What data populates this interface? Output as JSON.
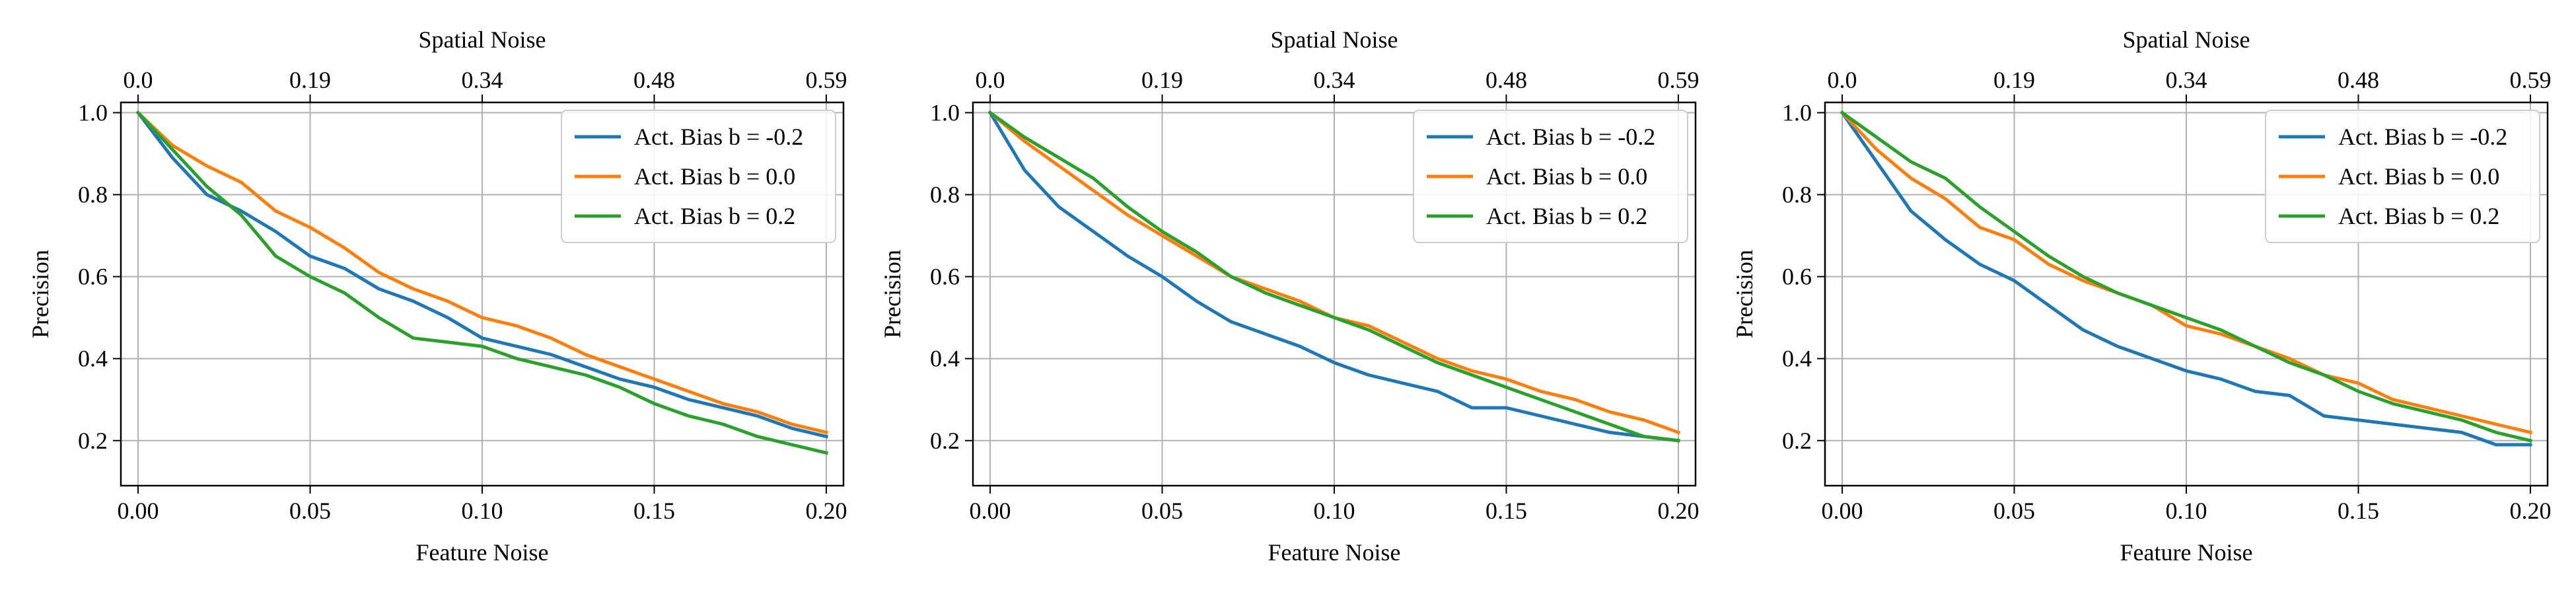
{
  "figure": {
    "colors": {
      "series": [
        "#1f77b4",
        "#ff7f0e",
        "#2ca02c"
      ],
      "grid": "#b0b0b0",
      "axis": "#000000",
      "legend_border": "#cccccc"
    }
  },
  "chart_data": [
    {
      "type": "line",
      "xlabel": "Feature Noise",
      "ylabel": "Precision",
      "top_xlabel": "Spatial Noise",
      "xlim": [
        -0.005,
        0.205
      ],
      "ylim": [
        0.09,
        1.025
      ],
      "xticks": [
        0.0,
        0.05,
        0.1,
        0.15,
        0.2
      ],
      "xtick_labels": [
        "0.00",
        "0.05",
        "0.10",
        "0.15",
        "0.20"
      ],
      "yticks": [
        0.2,
        0.4,
        0.6,
        0.8,
        1.0
      ],
      "ytick_labels": [
        "0.2",
        "0.4",
        "0.6",
        "0.8",
        "1.0"
      ],
      "top_xtick_labels": [
        "0.0",
        "0.19",
        "0.34",
        "0.48",
        "0.59"
      ],
      "grid": true,
      "legend_position": "upper right",
      "x": [
        0.0,
        0.01,
        0.02,
        0.03,
        0.04,
        0.05,
        0.06,
        0.07,
        0.08,
        0.09,
        0.1,
        0.11,
        0.12,
        0.13,
        0.14,
        0.15,
        0.16,
        0.17,
        0.18,
        0.19,
        0.2
      ],
      "series": [
        {
          "name": "Act. Bias b = -0.2",
          "values": [
            1.0,
            0.89,
            0.8,
            0.76,
            0.71,
            0.65,
            0.62,
            0.57,
            0.54,
            0.5,
            0.45,
            0.43,
            0.41,
            0.38,
            0.35,
            0.33,
            0.3,
            0.28,
            0.26,
            0.23,
            0.21
          ]
        },
        {
          "name": "Act. Bias b = 0.0",
          "values": [
            1.0,
            0.92,
            0.87,
            0.83,
            0.76,
            0.72,
            0.67,
            0.61,
            0.57,
            0.54,
            0.5,
            0.48,
            0.45,
            0.41,
            0.38,
            0.35,
            0.32,
            0.29,
            0.27,
            0.24,
            0.22
          ]
        },
        {
          "name": "Act. Bias b = 0.2",
          "values": [
            1.0,
            0.91,
            0.82,
            0.75,
            0.65,
            0.6,
            0.56,
            0.5,
            0.45,
            0.44,
            0.43,
            0.4,
            0.38,
            0.36,
            0.33,
            0.29,
            0.26,
            0.24,
            0.21,
            0.19,
            0.17
          ]
        }
      ]
    },
    {
      "type": "line",
      "xlabel": "Feature Noise",
      "ylabel": "Precision",
      "top_xlabel": "Spatial Noise",
      "xlim": [
        -0.005,
        0.205
      ],
      "ylim": [
        0.09,
        1.025
      ],
      "xticks": [
        0.0,
        0.05,
        0.1,
        0.15,
        0.2
      ],
      "xtick_labels": [
        "0.00",
        "0.05",
        "0.10",
        "0.15",
        "0.20"
      ],
      "yticks": [
        0.2,
        0.4,
        0.6,
        0.8,
        1.0
      ],
      "ytick_labels": [
        "0.2",
        "0.4",
        "0.6",
        "0.8",
        "1.0"
      ],
      "top_xtick_labels": [
        "0.0",
        "0.19",
        "0.34",
        "0.48",
        "0.59"
      ],
      "grid": true,
      "legend_position": "upper right",
      "x": [
        0.0,
        0.01,
        0.02,
        0.03,
        0.04,
        0.05,
        0.06,
        0.07,
        0.08,
        0.09,
        0.1,
        0.11,
        0.12,
        0.13,
        0.14,
        0.15,
        0.16,
        0.17,
        0.18,
        0.19,
        0.2
      ],
      "series": [
        {
          "name": "Act. Bias b = -0.2",
          "values": [
            1.0,
            0.86,
            0.77,
            0.71,
            0.65,
            0.6,
            0.54,
            0.49,
            0.46,
            0.43,
            0.39,
            0.36,
            0.34,
            0.32,
            0.28,
            0.28,
            0.26,
            0.24,
            0.22,
            0.21,
            0.2
          ]
        },
        {
          "name": "Act. Bias b = 0.0",
          "values": [
            1.0,
            0.93,
            0.87,
            0.81,
            0.75,
            0.7,
            0.65,
            0.6,
            0.57,
            0.54,
            0.5,
            0.48,
            0.44,
            0.4,
            0.37,
            0.35,
            0.32,
            0.3,
            0.27,
            0.25,
            0.22
          ]
        },
        {
          "name": "Act. Bias b = 0.2",
          "values": [
            1.0,
            0.94,
            0.89,
            0.84,
            0.77,
            0.71,
            0.66,
            0.6,
            0.56,
            0.53,
            0.5,
            0.47,
            0.43,
            0.39,
            0.36,
            0.33,
            0.3,
            0.27,
            0.24,
            0.21,
            0.2
          ]
        }
      ]
    },
    {
      "type": "line",
      "xlabel": "Feature Noise",
      "ylabel": "Precision",
      "top_xlabel": "Spatial Noise",
      "xlim": [
        -0.005,
        0.205
      ],
      "ylim": [
        0.09,
        1.025
      ],
      "xticks": [
        0.0,
        0.05,
        0.1,
        0.15,
        0.2
      ],
      "xtick_labels": [
        "0.00",
        "0.05",
        "0.10",
        "0.15",
        "0.20"
      ],
      "yticks": [
        0.2,
        0.4,
        0.6,
        0.8,
        1.0
      ],
      "ytick_labels": [
        "0.2",
        "0.4",
        "0.6",
        "0.8",
        "1.0"
      ],
      "top_xtick_labels": [
        "0.0",
        "0.19",
        "0.34",
        "0.48",
        "0.59"
      ],
      "grid": true,
      "legend_position": "upper right",
      "x": [
        0.0,
        0.01,
        0.02,
        0.03,
        0.04,
        0.05,
        0.06,
        0.07,
        0.08,
        0.09,
        0.1,
        0.11,
        0.12,
        0.13,
        0.14,
        0.15,
        0.16,
        0.17,
        0.18,
        0.19,
        0.2
      ],
      "series": [
        {
          "name": "Act. Bias b = -0.2",
          "values": [
            1.0,
            0.88,
            0.76,
            0.69,
            0.63,
            0.59,
            0.53,
            0.47,
            0.43,
            0.4,
            0.37,
            0.35,
            0.32,
            0.31,
            0.26,
            0.25,
            0.24,
            0.23,
            0.22,
            0.19,
            0.19
          ]
        },
        {
          "name": "Act. Bias b = 0.0",
          "values": [
            1.0,
            0.91,
            0.84,
            0.79,
            0.72,
            0.69,
            0.63,
            0.59,
            0.56,
            0.53,
            0.48,
            0.46,
            0.43,
            0.4,
            0.36,
            0.34,
            0.3,
            0.28,
            0.26,
            0.24,
            0.22
          ]
        },
        {
          "name": "Act. Bias b = 0.2",
          "values": [
            1.0,
            0.94,
            0.88,
            0.84,
            0.77,
            0.71,
            0.65,
            0.6,
            0.56,
            0.53,
            0.5,
            0.47,
            0.43,
            0.39,
            0.36,
            0.32,
            0.29,
            0.27,
            0.25,
            0.22,
            0.2
          ]
        }
      ]
    }
  ]
}
